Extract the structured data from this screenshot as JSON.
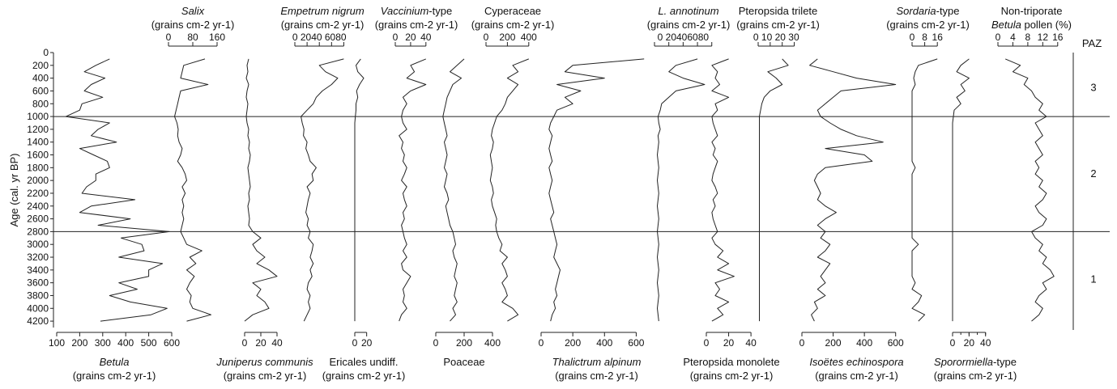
{
  "chart_data": {
    "type": "line",
    "y_axis": {
      "label": "Age (cal. yr BP)",
      "range": [
        0,
        4300
      ],
      "ticks": [
        0,
        200,
        400,
        600,
        800,
        1000,
        1200,
        1400,
        1600,
        1800,
        2000,
        2200,
        2400,
        2600,
        2800,
        3000,
        3200,
        3400,
        3600,
        3800,
        4000,
        4200
      ],
      "inverted": true
    },
    "zone_header": "PAZ",
    "zones": [
      {
        "label": "3",
        "from": 100,
        "to": 1000
      },
      {
        "label": "2",
        "from": 1000,
        "to": 2800
      },
      {
        "label": "1",
        "from": 2800,
        "to": 4300
      }
    ],
    "zone_boundaries": [
      1000,
      2800
    ],
    "samples": [
      100,
      200,
      300,
      400,
      500,
      600,
      700,
      800,
      900,
      1000,
      1100,
      1200,
      1300,
      1400,
      1500,
      1600,
      1700,
      1800,
      1900,
      2000,
      2100,
      2200,
      2300,
      2400,
      2500,
      2600,
      2700,
      2800,
      2900,
      3000,
      3100,
      3200,
      3300,
      3400,
      3500,
      3600,
      3700,
      3800,
      3900,
      4000,
      4100,
      4200
    ],
    "series": [
      {
        "name_parts": [
          {
            "t": "Betula",
            "i": true
          }
        ],
        "units": "(grains cm-2 yr-1)",
        "axis_pos": "bottom",
        "range": [
          100,
          600
        ],
        "ticks": [
          100,
          200,
          300,
          400,
          500,
          600
        ],
        "values": [
          330,
          270,
          220,
          310,
          250,
          220,
          300,
          210,
          200,
          140,
          330,
          280,
          250,
          360,
          200,
          260,
          320,
          330,
          270,
          270,
          230,
          210,
          440,
          250,
          200,
          420,
          280,
          590,
          380,
          470,
          480,
          370,
          560,
          500,
          500,
          370,
          450,
          330,
          420,
          580,
          510,
          290
        ]
      },
      {
        "name_parts": [
          {
            "t": "Salix",
            "i": true
          }
        ],
        "units": "(grains cm-2 yr-1)",
        "axis_pos": "top",
        "range": [
          0,
          160
        ],
        "ticks": [
          0,
          80,
          160
        ],
        "values": [
          120,
          50,
          45,
          40,
          130,
          40,
          35,
          30,
          25,
          20,
          28,
          32,
          30,
          35,
          45,
          40,
          30,
          45,
          55,
          60,
          45,
          55,
          45,
          50,
          45,
          50,
          45,
          40,
          50,
          60,
          110,
          70,
          90,
          60,
          85,
          70,
          60,
          75,
          70,
          80,
          140,
          60
        ]
      },
      {
        "name_parts": [
          {
            "t": "Juniperus communis",
            "i": true
          }
        ],
        "units": "(grains cm-2 yr-1)",
        "axis_pos": "bottom",
        "range": [
          0,
          50
        ],
        "ticks": [
          0,
          20,
          40
        ],
        "values": [
          5,
          3,
          4,
          2,
          5,
          3,
          2,
          4,
          3,
          2,
          3,
          5,
          4,
          6,
          5,
          7,
          6,
          4,
          5,
          6,
          7,
          5,
          6,
          4,
          5,
          6,
          5,
          10,
          20,
          10,
          15,
          25,
          15,
          30,
          40,
          10,
          20,
          15,
          25,
          30,
          10,
          0
        ]
      },
      {
        "name_parts": [
          {
            "t": "Empetrum nigrum",
            "i": true
          }
        ],
        "units": "(grains cm-2 yr-1)",
        "axis_pos": "top",
        "range": [
          0,
          90
        ],
        "ticks": [
          0,
          20,
          40,
          60,
          80
        ],
        "tick_text": "0 2040 6080",
        "values": [
          80,
          40,
          50,
          70,
          60,
          45,
          35,
          30,
          20,
          10,
          12,
          15,
          14,
          20,
          18,
          22,
          25,
          35,
          28,
          30,
          20,
          25,
          22,
          20,
          18,
          22,
          20,
          25,
          22,
          30,
          28,
          25,
          30,
          25,
          28,
          22,
          20,
          25,
          22,
          25,
          20,
          15
        ]
      },
      {
        "name_parts": [
          {
            "t": "Ericales undiff.",
            "i": false
          }
        ],
        "units": "(grains cm-2 yr-1)",
        "axis_pos": "bottom",
        "range": [
          0,
          30
        ],
        "ticks": [
          0,
          20
        ],
        "values": [
          10,
          2,
          5,
          15,
          8,
          3,
          5,
          2,
          2,
          1,
          0,
          0,
          0,
          0,
          0,
          0,
          0,
          0,
          0,
          0,
          0,
          0,
          0,
          0,
          0,
          0,
          0,
          0,
          0,
          0,
          0,
          0,
          0,
          0,
          0,
          0,
          0,
          0,
          0,
          0,
          0,
          0
        ]
      },
      {
        "name_parts": [
          {
            "t": "Vaccinium",
            "i": true
          },
          {
            "t": "-type",
            "i": false
          }
        ],
        "units": "(grains cm-2 yr-1)",
        "axis_pos": "top",
        "range": [
          0,
          55
        ],
        "ticks": [
          0,
          20,
          40
        ],
        "values": [
          40,
          20,
          25,
          15,
          40,
          20,
          10,
          15,
          10,
          8,
          10,
          15,
          5,
          10,
          8,
          12,
          10,
          15,
          12,
          8,
          15,
          10,
          12,
          15,
          10,
          12,
          8,
          10,
          12,
          15,
          10,
          15,
          8,
          10,
          20,
          15,
          10,
          12,
          10,
          15,
          8,
          5
        ]
      },
      {
        "name_parts": [
          {
            "t": "Poaceae",
            "i": false
          }
        ],
        "units": "",
        "axis_pos": "bottom",
        "range": [
          0,
          400
        ],
        "ticks": [
          0,
          200,
          400
        ],
        "values": [
          200,
          150,
          100,
          180,
          120,
          100,
          80,
          70,
          60,
          50,
          60,
          70,
          80,
          60,
          70,
          80,
          70,
          60,
          80,
          70,
          60,
          80,
          90,
          70,
          80,
          90,
          100,
          120,
          130,
          140,
          120,
          130,
          150,
          140,
          130,
          150,
          140,
          130,
          150,
          120,
          140,
          100
        ]
      },
      {
        "name_parts": [
          {
            "t": "Cyperaceae",
            "i": false
          }
        ],
        "units": "(grains cm-2 yr-1)",
        "axis_pos": "top",
        "range": [
          0,
          500
        ],
        "ticks": [
          0,
          200,
          400
        ],
        "values": [
          400,
          250,
          300,
          200,
          300,
          250,
          200,
          180,
          150,
          100,
          80,
          60,
          50,
          70,
          60,
          40,
          50,
          60,
          50,
          40,
          60,
          70,
          50,
          60,
          80,
          100,
          90,
          100,
          120,
          150,
          130,
          200,
          150,
          180,
          200,
          150,
          180,
          200,
          150,
          250,
          300,
          200
        ]
      },
      {
        "name_parts": [
          {
            "t": "Thalictrum alpinum",
            "i": true
          }
        ],
        "units": "(grains cm-2 yr-1)",
        "axis_pos": "bottom",
        "range": [
          0,
          700
        ],
        "ticks": [
          0,
          200,
          400,
          600
        ],
        "values": [
          650,
          200,
          150,
          400,
          100,
          250,
          150,
          200,
          100,
          80,
          60,
          50,
          70,
          60,
          50,
          60,
          70,
          50,
          60,
          70,
          60,
          50,
          60,
          70,
          80,
          60,
          70,
          80,
          90,
          100,
          90,
          80,
          100,
          120,
          110,
          100,
          90,
          100,
          80,
          90,
          70,
          60
        ]
      },
      {
        "name_parts": [
          {
            "t": "L. annotinum",
            "i": true
          }
        ],
        "units": "(grains cm-2 yr-1)",
        "axis_pos": "top",
        "range": [
          0,
          95
        ],
        "ticks": [
          0,
          20,
          40,
          60,
          80
        ],
        "tick_text": "0 20406080",
        "values": [
          60,
          30,
          20,
          40,
          70,
          30,
          20,
          10,
          8,
          5,
          6,
          8,
          5,
          6,
          5,
          4,
          5,
          6,
          5,
          4,
          5,
          6,
          5,
          4,
          5,
          6,
          5,
          4,
          5,
          6,
          5,
          4,
          5,
          6,
          5,
          4,
          5,
          6,
          5,
          4,
          5,
          6
        ]
      },
      {
        "name_parts": [
          {
            "t": "Pteropsida monolete",
            "i": false
          }
        ],
        "units": "(grains cm-2 yr-1)",
        "axis_pos": "bottom",
        "range": [
          0,
          45
        ],
        "ticks": [
          0,
          20,
          40
        ],
        "values": [
          20,
          5,
          10,
          8,
          12,
          5,
          20,
          8,
          10,
          5,
          6,
          8,
          10,
          5,
          8,
          6,
          10,
          8,
          6,
          5,
          8,
          10,
          6,
          8,
          5,
          6,
          8,
          10,
          5,
          8,
          15,
          10,
          20,
          10,
          25,
          8,
          12,
          8,
          20,
          10,
          15,
          5
        ]
      },
      {
        "name_parts": [
          {
            "t": "Pteropsida trilete",
            "i": false
          }
        ],
        "units": "(grains cm-2 yr-1)",
        "axis_pos": "top",
        "range": [
          0,
          33
        ],
        "ticks": [
          0,
          10,
          20,
          30
        ],
        "tick_text": "0  10 20 30",
        "values": [
          20,
          25,
          8,
          15,
          20,
          10,
          5,
          3,
          2,
          1,
          1,
          1,
          1,
          1,
          1,
          1,
          1,
          1,
          1,
          1,
          1,
          1,
          1,
          1,
          1,
          1,
          1,
          1,
          1,
          1,
          1,
          1,
          1,
          1,
          1,
          1,
          1,
          1,
          1,
          1,
          1,
          1
        ]
      },
      {
        "name_parts": [
          {
            "t": "Isoëtes echinospora",
            "i": true
          }
        ],
        "units": "(grains cm-2 yr-1)",
        "axis_pos": "bottom",
        "range": [
          0,
          700
        ],
        "ticks": [
          0,
          200,
          400,
          600
        ],
        "values": [
          100,
          50,
          200,
          350,
          600,
          250,
          200,
          150,
          100,
          120,
          180,
          250,
          350,
          520,
          150,
          400,
          450,
          150,
          100,
          80,
          100,
          120,
          100,
          150,
          220,
          150,
          100,
          150,
          120,
          180,
          150,
          100,
          180,
          150,
          120,
          150,
          100,
          150,
          80,
          100,
          60,
          80
        ]
      },
      {
        "name_parts": [
          {
            "t": "Sordaria",
            "i": true
          },
          {
            "t": "-type",
            "i": false
          }
        ],
        "units": "(grains cm-2 yr-1)",
        "axis_pos": "top",
        "range": [
          0,
          20
        ],
        "ticks": [
          0,
          8,
          16
        ],
        "values": [
          16,
          4,
          2,
          1,
          2,
          0,
          0,
          0,
          0,
          0,
          0,
          0,
          0,
          0,
          0,
          0,
          0,
          2,
          0,
          0,
          0,
          0,
          0,
          0,
          0,
          0,
          0,
          0,
          0,
          4,
          0,
          0,
          0,
          0,
          0,
          2,
          0,
          6,
          4,
          0,
          8,
          4
        ]
      },
      {
        "name_parts": [
          {
            "t": "Sporormiella",
            "i": true
          },
          {
            "t": "-type",
            "i": false
          }
        ],
        "units": "(grains cm-2 yr-1)",
        "axis_pos": "bottom",
        "range": [
          0,
          55
        ],
        "ticks": [
          0,
          20,
          40
        ],
        "minor_step": 10,
        "values": [
          20,
          10,
          5,
          20,
          10,
          15,
          5,
          10,
          2,
          1,
          0,
          0,
          0,
          0,
          0,
          0,
          0,
          0,
          0,
          0,
          0,
          0,
          0,
          0,
          0,
          0,
          0,
          0,
          0,
          0,
          0,
          0,
          0,
          0,
          0,
          0,
          0,
          0,
          0,
          0,
          0,
          0
        ]
      },
      {
        "name_parts": [
          {
            "t": "Non-triporate",
            "i": false
          }
        ],
        "name_parts_2": [
          {
            "t": "Betula",
            "i": true
          },
          {
            "t": " pollen (%)",
            "i": false
          }
        ],
        "units": "",
        "axis_pos": "top",
        "range": [
          0,
          18
        ],
        "ticks": [
          0,
          4,
          8,
          12,
          16
        ],
        "values": [
          2,
          6,
          4,
          8,
          7,
          9,
          10,
          12,
          11,
          13,
          10,
          11,
          12,
          10,
          11,
          12,
          10,
          11,
          10,
          12,
          11,
          13,
          12,
          10,
          11,
          13,
          12,
          9,
          10,
          12,
          11,
          13,
          12,
          14,
          15,
          12,
          13,
          11,
          10,
          12,
          11,
          9
        ]
      }
    ]
  }
}
